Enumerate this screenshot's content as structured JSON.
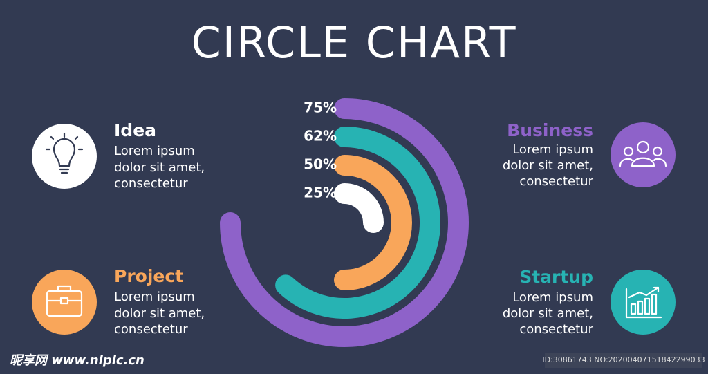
{
  "chart_data": {
    "type": "radial_bar",
    "title": "CIRCLE CHART",
    "values": [
      75,
      62,
      50,
      25
    ],
    "value_labels": [
      "75%",
      "62%",
      "50%",
      "25%"
    ],
    "colors": [
      "#8e62c9",
      "#27b3b3",
      "#f9a65a",
      "#ffffff"
    ],
    "ylim": [
      0,
      100
    ]
  },
  "items": [
    {
      "title": "Idea",
      "lines": [
        "Lorem ipsum",
        "dolor sit amet,",
        "consectetur"
      ]
    },
    {
      "title": "Project",
      "lines": [
        "Lorem ipsum",
        "dolor sit amet,",
        "consectetur"
      ]
    },
    {
      "title": "Business",
      "lines": [
        "Lorem ipsum",
        "dolor sit amet,",
        "consectetur"
      ]
    },
    {
      "title": "Startup",
      "lines": [
        "Lorem ipsum",
        "dolor sit amet,",
        "consectetur"
      ]
    }
  ],
  "watermark": {
    "site": "昵享网 www.nipic.cn",
    "id": "ID:30861743 NO:20200407151842299033"
  }
}
